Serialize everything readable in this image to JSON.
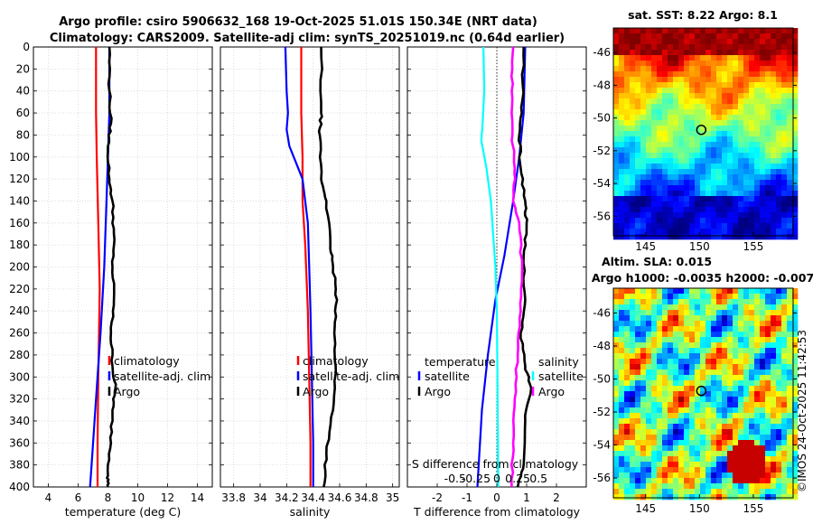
{
  "header": {
    "line1": "Argo profile: csiro 5906632_168 19-Oct-2025 51.01S 150.34E (NRT data)",
    "line2": "Climatology: CARS2009. Satellite-adj clim: synTS_20251019.nc (0.64d earlier)"
  },
  "colors": {
    "climatology": "#ff0000",
    "satellite": "#0000ff",
    "argo": "#000000",
    "cyan": "#00ffff",
    "magenta": "#ff00ff"
  },
  "chart_data": [
    {
      "type": "line",
      "id": "temperature",
      "xlabel": "temperature (deg C)",
      "ylabel": "",
      "xlim": [
        3,
        15
      ],
      "ylim": [
        400,
        0
      ],
      "xticks": [
        4,
        6,
        8,
        10,
        12,
        14
      ],
      "yticks": [
        0,
        20,
        40,
        60,
        80,
        100,
        120,
        140,
        160,
        180,
        200,
        220,
        240,
        260,
        280,
        300,
        320,
        340,
        360,
        380,
        400
      ],
      "legend": [
        "climatology",
        "satellite-adj. clim",
        "Argo"
      ],
      "legend_position": "middle-right",
      "series": [
        {
          "name": "climatology",
          "color": "#ff0000",
          "points": [
            [
              7.2,
              0
            ],
            [
              7.2,
              60
            ],
            [
              7.25,
              100
            ],
            [
              7.35,
              160
            ],
            [
              7.45,
              220
            ],
            [
              7.4,
              260
            ],
            [
              7.35,
              300
            ],
            [
              7.3,
              360
            ],
            [
              7.3,
              400
            ]
          ]
        },
        {
          "name": "satellite-adj. clim",
          "color": "#0000ff",
          "points": [
            [
              8.1,
              0
            ],
            [
              8.1,
              60
            ],
            [
              8.0,
              100
            ],
            [
              7.9,
              140
            ],
            [
              7.75,
              200
            ],
            [
              7.5,
              260
            ],
            [
              7.2,
              320
            ],
            [
              6.9,
              380
            ],
            [
              6.8,
              400
            ]
          ]
        },
        {
          "name": "Argo",
          "color": "#000000",
          "points": [
            [
              8.1,
              0
            ],
            [
              8.1,
              40
            ],
            [
              8.2,
              70
            ],
            [
              8.0,
              90
            ],
            [
              8.1,
              120
            ],
            [
              8.3,
              140
            ],
            [
              8.4,
              170
            ],
            [
              8.3,
              200
            ],
            [
              8.4,
              230
            ],
            [
              8.2,
              260
            ],
            [
              8.3,
              290
            ],
            [
              8.5,
              310
            ],
            [
              8.3,
              330
            ],
            [
              8.2,
              360
            ],
            [
              8.0,
              390
            ],
            [
              8.0,
              400
            ]
          ]
        }
      ]
    },
    {
      "type": "line",
      "id": "salinity",
      "xlabel": "salinity",
      "ylabel": "",
      "xlim": [
        33.7,
        35.05
      ],
      "ylim": [
        400,
        0
      ],
      "xticks": [
        33.8,
        34,
        34.2,
        34.4,
        34.6,
        34.8,
        35
      ],
      "xticklabels": [
        "33.8",
        "34",
        "34.2",
        "34.4",
        "34.6",
        "34.8",
        "35"
      ],
      "legend": [
        "climatology",
        "satellite-adj. clim",
        "Argo"
      ],
      "legend_position": "middle-right",
      "series": [
        {
          "name": "climatology",
          "color": "#ff0000",
          "points": [
            [
              34.31,
              0
            ],
            [
              34.31,
              60
            ],
            [
              34.32,
              100
            ],
            [
              34.32,
              140
            ],
            [
              34.34,
              180
            ],
            [
              34.36,
              240
            ],
            [
              34.37,
              300
            ],
            [
              34.38,
              360
            ],
            [
              34.38,
              400
            ]
          ]
        },
        {
          "name": "satellite-adj. clim",
          "color": "#0000ff",
          "points": [
            [
              34.19,
              0
            ],
            [
              34.2,
              40
            ],
            [
              34.21,
              60
            ],
            [
              34.2,
              75
            ],
            [
              34.22,
              90
            ],
            [
              34.27,
              105
            ],
            [
              34.32,
              120
            ],
            [
              34.36,
              160
            ],
            [
              34.37,
              200
            ],
            [
              34.38,
              240
            ],
            [
              34.39,
              300
            ],
            [
              34.4,
              360
            ],
            [
              34.4,
              400
            ]
          ]
        },
        {
          "name": "Argo",
          "color": "#000000",
          "points": [
            [
              34.46,
              0
            ],
            [
              34.46,
              60
            ],
            [
              34.45,
              80
            ],
            [
              34.46,
              120
            ],
            [
              34.5,
              140
            ],
            [
              34.53,
              180
            ],
            [
              34.55,
              200
            ],
            [
              34.58,
              230
            ],
            [
              34.56,
              260
            ],
            [
              34.57,
              290
            ],
            [
              34.55,
              330
            ],
            [
              34.5,
              370
            ],
            [
              34.48,
              400
            ]
          ]
        }
      ]
    },
    {
      "type": "line",
      "id": "difference",
      "xlabel": "T difference from climatology",
      "xlabel_top": "S difference from climatology",
      "xlim": [
        -3,
        3
      ],
      "ylim": [
        400,
        0
      ],
      "xticks": [
        -2,
        -1,
        0,
        1,
        2
      ],
      "xticklabels": [
        "-2",
        "-1",
        "0",
        "1",
        "2"
      ],
      "s_xticklabels": [
        "-0.5",
        "-0.25",
        "0",
        "0.25",
        "0.5"
      ],
      "legend_left_title": "temperature",
      "legend_left": [
        "satellite",
        "Argo"
      ],
      "legend_right_title": "salinity",
      "legend_right": [
        "satellite",
        "Argo"
      ],
      "series": [
        {
          "name": "T satellite",
          "color": "#0000ff",
          "points": [
            [
              0.95,
              0
            ],
            [
              0.9,
              60
            ],
            [
              0.75,
              100
            ],
            [
              0.55,
              140
            ],
            [
              0.25,
              190
            ],
            [
              -0.05,
              230
            ],
            [
              -0.3,
              280
            ],
            [
              -0.5,
              330
            ],
            [
              -0.65,
              400
            ]
          ]
        },
        {
          "name": "T Argo",
          "color": "#000000",
          "points": [
            [
              0.9,
              0
            ],
            [
              0.85,
              50
            ],
            [
              0.75,
              80
            ],
            [
              0.8,
              110
            ],
            [
              0.95,
              140
            ],
            [
              1.0,
              160
            ],
            [
              0.9,
              190
            ],
            [
              0.95,
              230
            ],
            [
              0.8,
              260
            ],
            [
              0.95,
              290
            ],
            [
              1.15,
              310
            ],
            [
              0.95,
              340
            ],
            [
              0.9,
              380
            ],
            [
              0.7,
              400
            ]
          ]
        },
        {
          "name": "S satellite",
          "color": "#00ffff",
          "points": [
            [
              -0.45,
              0
            ],
            [
              -0.42,
              40
            ],
            [
              -0.48,
              70
            ],
            [
              -0.52,
              85
            ],
            [
              -0.35,
              110
            ],
            [
              -0.2,
              140
            ],
            [
              -0.05,
              200
            ],
            [
              0.0,
              240
            ],
            [
              0.02,
              300
            ],
            [
              0.05,
              400
            ]
          ]
        },
        {
          "name": "S Argo",
          "color": "#ff00ff",
          "points": [
            [
              0.55,
              0
            ],
            [
              0.5,
              40
            ],
            [
              0.52,
              80
            ],
            [
              0.6,
              110
            ],
            [
              0.55,
              140
            ],
            [
              0.75,
              160
            ],
            [
              0.85,
              200
            ],
            [
              0.8,
              240
            ],
            [
              0.7,
              280
            ],
            [
              0.6,
              320
            ],
            [
              0.55,
              360
            ],
            [
              0.5,
              400
            ]
          ]
        }
      ]
    }
  ],
  "maps": {
    "sst": {
      "title": "sat. SST: 8.22 Argo: 8.1",
      "xticks": [
        "145",
        "150",
        "155"
      ],
      "yticks": [
        "-46",
        "-48",
        "-50",
        "-52",
        "-54",
        "-56"
      ]
    },
    "sla": {
      "title1": "Altim. SLA: 0.015",
      "title2": "Argo h1000: -0.0035 h2000: -0.007",
      "xticks": [
        "145",
        "150",
        "155"
      ],
      "yticks": [
        "-46",
        "-48",
        "-50",
        "-52",
        "-54",
        "-56"
      ]
    },
    "credit": "©IMOS 24-Oct-2025 11:42:53"
  }
}
